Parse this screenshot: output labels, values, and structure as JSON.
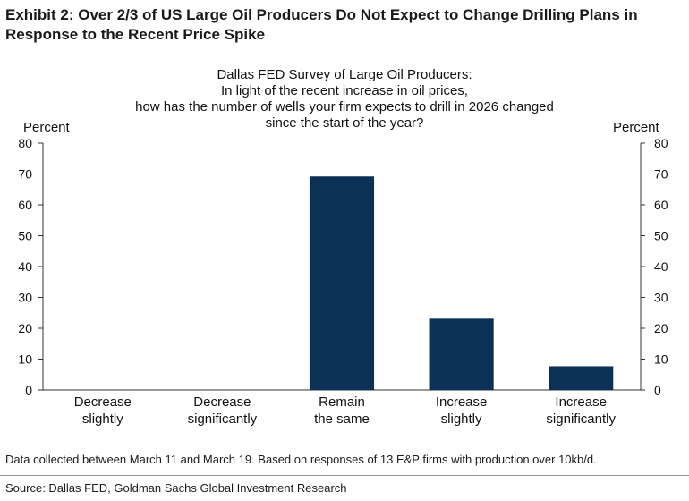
{
  "exhibit": {
    "title": "Exhibit 2: Over 2/3 of US Large Oil Producers Do Not Expect to Change Drilling Plans in Response to the Recent Price Spike"
  },
  "chart_data": {
    "type": "bar",
    "title_lines": [
      "Dallas FED Survey of Large Oil Producers:",
      "In light of the recent increase in oil prices,",
      "how has the number of wells your firm expects to drill in 2026 changed",
      "since the start of the year?"
    ],
    "ylabel_left": "Percent",
    "ylabel_right": "Percent",
    "ylim": [
      0,
      80
    ],
    "yticks": [
      0,
      10,
      20,
      30,
      40,
      50,
      60,
      70,
      80
    ],
    "categories": [
      [
        "Decrease",
        "slightly"
      ],
      [
        "Decrease",
        "significantly"
      ],
      [
        "Remain",
        "the same"
      ],
      [
        "Increase",
        "slightly"
      ],
      [
        "Increase",
        "significantly"
      ]
    ],
    "values": [
      0,
      0,
      69.2,
      23.1,
      7.7
    ],
    "bar_color": "#0b3157",
    "grid": false
  },
  "footer": {
    "note": "Data collected between March 11 and March 19. Based on responses of 13 E&P firms with production over 10kb/d.",
    "source": "Source: Dallas FED, Goldman Sachs Global Investment Research"
  }
}
